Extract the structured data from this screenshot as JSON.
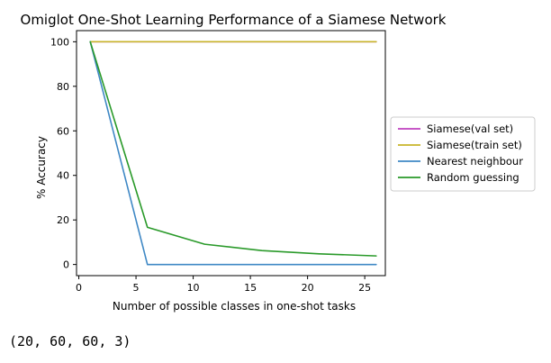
{
  "chart_data": {
    "type": "line",
    "title": "Omiglot One-Shot Learning Performance of a Siamese Network",
    "xlabel": "Number of possible classes in one-shot tasks",
    "ylabel": "% Accuracy",
    "xlim": [
      -0.2,
      26.8
    ],
    "ylim": [
      -5,
      105
    ],
    "xticks": [
      0,
      5,
      10,
      15,
      20,
      25
    ],
    "yticks": [
      0,
      20,
      40,
      60,
      80,
      100
    ],
    "grid": false,
    "legend_position": "center-right-outside",
    "x": [
      1,
      6,
      11,
      16,
      21,
      26
    ],
    "series": [
      {
        "name": "Siamese(val set)",
        "color": "#bf40bf",
        "values": [
          100,
          100,
          100,
          100,
          100,
          100
        ]
      },
      {
        "name": "Siamese(train set)",
        "color": "#c8b42a",
        "values": [
          100,
          100,
          100,
          100,
          100,
          100
        ]
      },
      {
        "name": "Nearest neighbour",
        "color": "#3f88c5",
        "values": [
          100,
          0,
          0,
          0,
          0,
          0
        ]
      },
      {
        "name": "Random guessing",
        "color": "#2a9a2a",
        "values": [
          100,
          16.7,
          9.1,
          6.25,
          4.8,
          3.85
        ]
      }
    ]
  },
  "output_text": "(20, 60, 60, 3)"
}
